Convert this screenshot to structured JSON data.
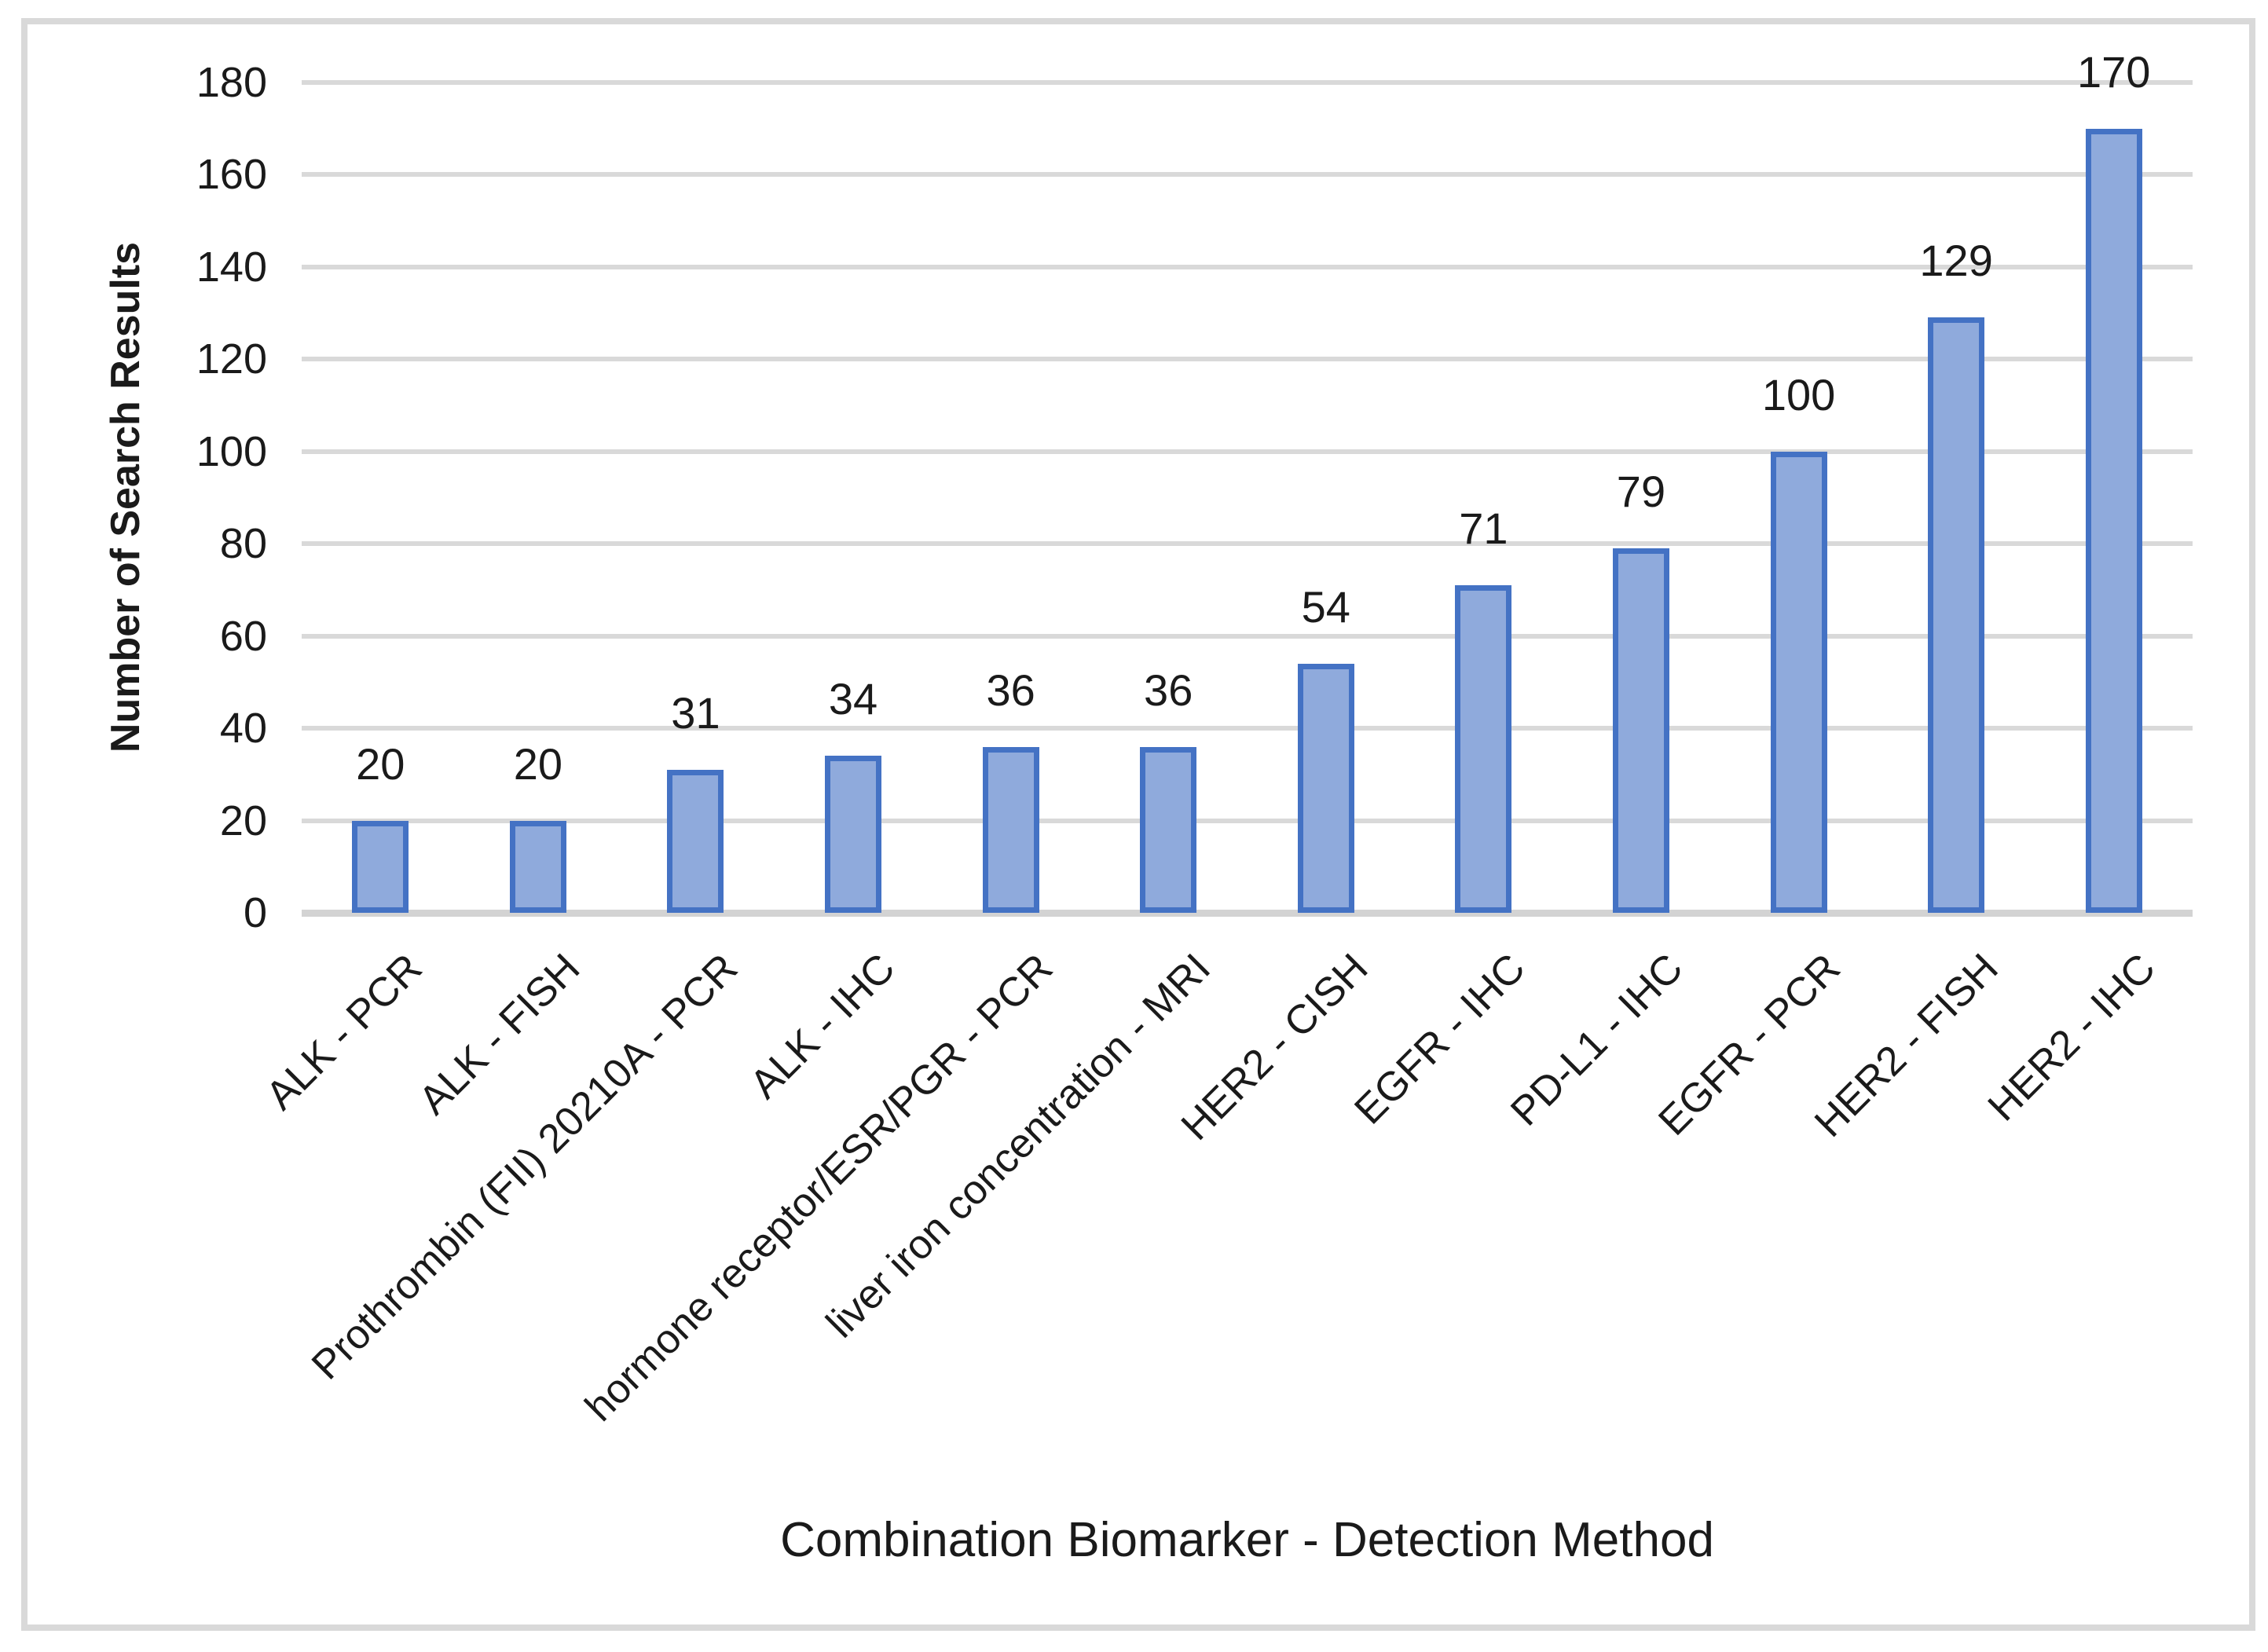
{
  "frame": {
    "border_color": "#D9D9D9",
    "background": "#FFFFFF"
  },
  "chart_data": {
    "type": "bar",
    "title": "",
    "xlabel": "Combination Biomarker - Detection Method",
    "ylabel": "Number of Search Results",
    "categories": [
      "ALK - PCR",
      "ALK - FISH",
      "Prothrombin (FII) 20210A - PCR",
      "ALK - IHC",
      "hormone receptor/ESR/PGR - PCR",
      "liver iron concentration - MRI",
      "HER2 - CISH",
      "EGFR - IHC",
      "PD-L1 - IHC",
      "EGFR - PCR",
      "HER2 - FISH",
      "HER2 - IHC"
    ],
    "values": [
      20,
      20,
      31,
      34,
      36,
      36,
      54,
      71,
      79,
      100,
      129,
      170
    ],
    "data_labels": [
      "20",
      "20",
      "31",
      "34",
      "36",
      "36",
      "54",
      "71",
      "79",
      "100",
      "129",
      "170"
    ],
    "ylim": [
      0,
      180
    ],
    "ytick_interval": 20,
    "yticks": [
      180,
      160,
      140,
      120,
      100,
      80,
      60,
      40,
      20,
      0
    ],
    "grid": true,
    "legend": false,
    "x_tick_rotation_deg": 45,
    "colors": {
      "bar_fill": "#8FAADC",
      "bar_border": "#4472C4",
      "gridline": "#D9D9D9",
      "axis_line": "#D3D3D3",
      "text": "#1A1A1A"
    }
  }
}
